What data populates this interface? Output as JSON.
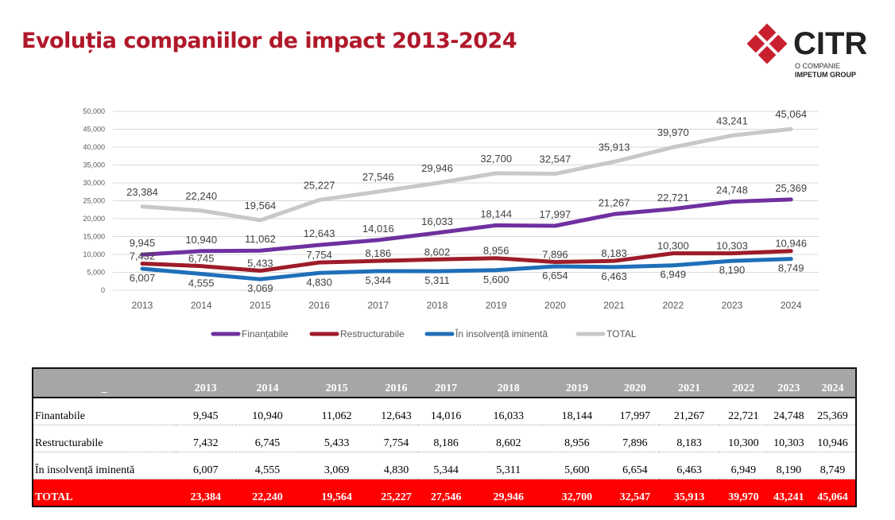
{
  "title": "Evoluția companiilor de impact 2013-2024",
  "logo": {
    "name": "CITR",
    "line1": "O COMPANIE",
    "line2": "IMPETUM GROUP",
    "color": "#c8202f"
  },
  "chart_data": {
    "type": "line",
    "categories": [
      "2013",
      "2014",
      "2015",
      "2016",
      "2017",
      "2018",
      "2019",
      "2020",
      "2021",
      "2022",
      "2023",
      "2024"
    ],
    "ylim": [
      0,
      50000
    ],
    "yticks": [
      "0",
      "5,000",
      "10,000",
      "15,000",
      "20,000",
      "25,000",
      "30,000",
      "35,000",
      "40,000",
      "45,000",
      "50,000"
    ],
    "grid": true,
    "legend": "bottom",
    "series": [
      {
        "name": "Finanțabile",
        "color": "#7030a0",
        "values": [
          9945,
          10940,
          11062,
          12643,
          14016,
          16033,
          18144,
          17997,
          21267,
          22721,
          24748,
          25369
        ],
        "labels": [
          "9,945",
          "10,940",
          "11,062",
          "12,643",
          "14,016",
          "16,033",
          "18,144",
          "17,997",
          "21,267",
          "22,721",
          "24,748",
          "25,369"
        ]
      },
      {
        "name": "Restructurabile",
        "color": "#9e1c2a",
        "values": [
          7432,
          6745,
          5433,
          7754,
          8186,
          8602,
          8956,
          7896,
          8183,
          10300,
          10303,
          10946
        ],
        "labels": [
          "7,432",
          "6,745",
          "5,433",
          "7,754",
          "8,186",
          "8,602",
          "8,956",
          "7,896",
          "8,183",
          "10,300",
          "10,303",
          "10,946"
        ]
      },
      {
        "name": "În insolvență iminentă",
        "color": "#1f6fb8",
        "values": [
          6007,
          4555,
          3069,
          4830,
          5344,
          5311,
          5600,
          6654,
          6463,
          6949,
          8190,
          8749
        ],
        "labels": [
          "6,007",
          "4,555",
          "3,069",
          "4,830",
          "5,344",
          "5,311",
          "5,600",
          "6,654",
          "6,463",
          "6,949",
          "8,190",
          "8,749"
        ]
      },
      {
        "name": "TOTAL",
        "color": "#c8c8c8",
        "values": [
          23384,
          22240,
          19564,
          25227,
          27546,
          29946,
          32700,
          32547,
          35913,
          39970,
          43241,
          45064
        ],
        "labels": [
          "23,384",
          "22,240",
          "19,564",
          "25,227",
          "27,546",
          "29,946",
          "32,700",
          "32,547",
          "35,913",
          "39,970",
          "43,241",
          "45,064"
        ]
      }
    ]
  },
  "table": {
    "corner": "_",
    "headers": [
      "2013",
      "2014",
      "2015",
      "2016",
      "2017",
      "2018",
      "2019",
      "2020",
      "2021",
      "2022",
      "2023",
      "2024"
    ],
    "rows": [
      {
        "label": "Finantabile",
        "cells": [
          "9,945",
          "10,940",
          "11,062",
          "12,643",
          "14,016",
          "16,033",
          "18,144",
          "17,997",
          "21,267",
          "22,721",
          "24,748",
          "25,369"
        ]
      },
      {
        "label": "Restructurabile",
        "cells": [
          "7,432",
          "6,745",
          "5,433",
          "7,754",
          "8,186",
          "8,602",
          "8,956",
          "7,896",
          "8,183",
          "10,300",
          "10,303",
          "10,946"
        ]
      },
      {
        "label": "În insolvență iminentă",
        "cells": [
          "6,007",
          "4,555",
          "3,069",
          "4,830",
          "5,344",
          "5,311",
          "5,600",
          "6,654",
          "6,463",
          "6,949",
          "8,190",
          "8,749"
        ]
      },
      {
        "label": "TOTAL",
        "cells": [
          "23,384",
          "22,240",
          "19,564",
          "25,227",
          "27,546",
          "29,946",
          "32,700",
          "32,547",
          "35,913",
          "39,970",
          "43,241",
          "45,064"
        ],
        "total": true
      }
    ]
  }
}
